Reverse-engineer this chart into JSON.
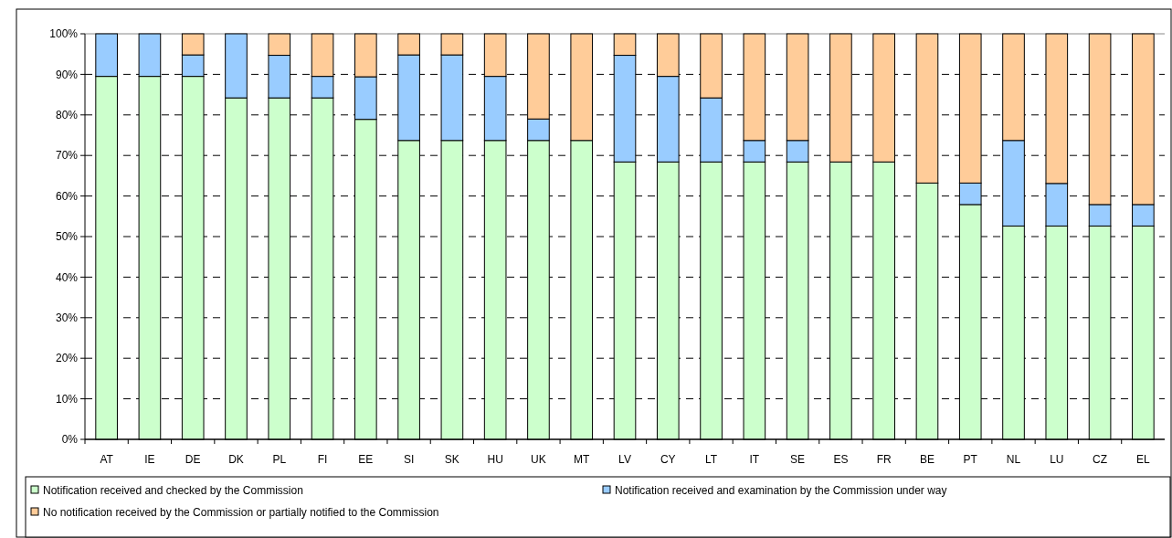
{
  "chart_data": {
    "type": "bar",
    "stacked": true,
    "categories": [
      "AT",
      "IE",
      "DE",
      "DK",
      "PL",
      "FI",
      "EE",
      "SI",
      "SK",
      "HU",
      "UK",
      "MT",
      "LV",
      "CY",
      "LT",
      "IT",
      "SE",
      "ES",
      "FR",
      "BE",
      "PT",
      "NL",
      "LU",
      "CZ",
      "EL"
    ],
    "series": [
      {
        "name": "Notification received and checked by the Commission",
        "color": "#ccffcc",
        "values": [
          89.5,
          89.5,
          89.5,
          84.2,
          84.2,
          84.2,
          78.9,
          73.7,
          73.7,
          73.7,
          73.7,
          73.7,
          68.4,
          68.4,
          68.4,
          68.4,
          68.4,
          68.4,
          68.4,
          63.2,
          57.9,
          52.6,
          52.6,
          52.6,
          52.6
        ]
      },
      {
        "name": "Notification received and examination by the Commission under way",
        "color": "#99ccff",
        "values": [
          10.5,
          10.5,
          5.3,
          15.8,
          10.5,
          5.3,
          10.5,
          21.1,
          21.1,
          15.8,
          5.3,
          0,
          26.3,
          21.1,
          15.8,
          5.3,
          5.3,
          0,
          0,
          0,
          5.3,
          21.1,
          10.5,
          5.3,
          5.3
        ]
      },
      {
        "name": "No notification received by the Commission or partially notified to the Commission",
        "color": "#ffcc99",
        "values": [
          0,
          0,
          5.2,
          0,
          5.3,
          10.5,
          10.6,
          5.2,
          5.2,
          10.5,
          21.0,
          26.3,
          5.3,
          10.5,
          15.8,
          26.3,
          26.3,
          31.6,
          31.6,
          36.8,
          36.8,
          26.3,
          36.9,
          42.1,
          42.1
        ]
      }
    ],
    "ylim": [
      0,
      100
    ],
    "yticks": [
      {
        "value": 0,
        "label": "0%"
      },
      {
        "value": 10,
        "label": "10%"
      },
      {
        "value": 20,
        "label": "20%"
      },
      {
        "value": 30,
        "label": "30%"
      },
      {
        "value": 40,
        "label": "40%"
      },
      {
        "value": 50,
        "label": "50%"
      },
      {
        "value": 60,
        "label": "60%"
      },
      {
        "value": 70,
        "label": "70%"
      },
      {
        "value": 80,
        "label": "80%"
      },
      {
        "value": 90,
        "label": "90%"
      },
      {
        "value": 100,
        "label": "100%"
      }
    ],
    "grid": "y",
    "legend": "bottom"
  }
}
